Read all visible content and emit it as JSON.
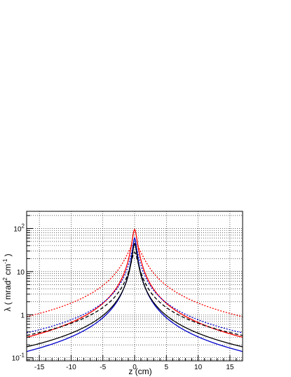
{
  "chart_data": {
    "type": "line",
    "xlabel": "z (cm)",
    "ylabel": {
      "text": "λ ( mrad",
      "sup1": "2",
      "mid": " cm",
      "sup2": "-1",
      "end": " )"
    },
    "xlim": [
      -17,
      17
    ],
    "ylim": [
      0.085,
      250
    ],
    "yscale": "log",
    "grid": true,
    "x_ticks": [
      -15,
      -10,
      -5,
      0,
      5,
      10,
      15
    ],
    "x_tick_labels": [
      "-15",
      "-10",
      "-5",
      "0",
      "5",
      "10",
      "15"
    ],
    "y_ticks": [
      0.1,
      1,
      10,
      100
    ],
    "y_tick_labels": [
      {
        "base": "10",
        "exp": "-1"
      },
      {
        "base": "1",
        "exp": ""
      },
      {
        "base": "10",
        "exp": ""
      },
      {
        "base": "10",
        "exp": "2"
      }
    ],
    "series": [
      {
        "color": "#ff0000",
        "dash": "solid",
        "peak": 95,
        "tail_at_17": 0.3,
        "core": 0.35
      },
      {
        "color": "#ff0000",
        "dash": "dotted",
        "peak": 45,
        "tail_at_17": 0.9,
        "core": 1.0
      },
      {
        "color": "#0000cc",
        "dash": "solid",
        "peak": 60,
        "tail_at_17": 0.14,
        "core": 0.28
      },
      {
        "color": "#0000cc",
        "dash": "dotted",
        "peak": 45,
        "tail_at_17": 0.38,
        "core": 0.45
      },
      {
        "color": "#000000",
        "dash": "solid",
        "peak": 45,
        "tail_at_17": 0.18,
        "core": 0.3
      },
      {
        "color": "#000000",
        "dash": "dashed",
        "peak": 28,
        "tail_at_17": 0.33,
        "core": 0.45
      }
    ]
  }
}
